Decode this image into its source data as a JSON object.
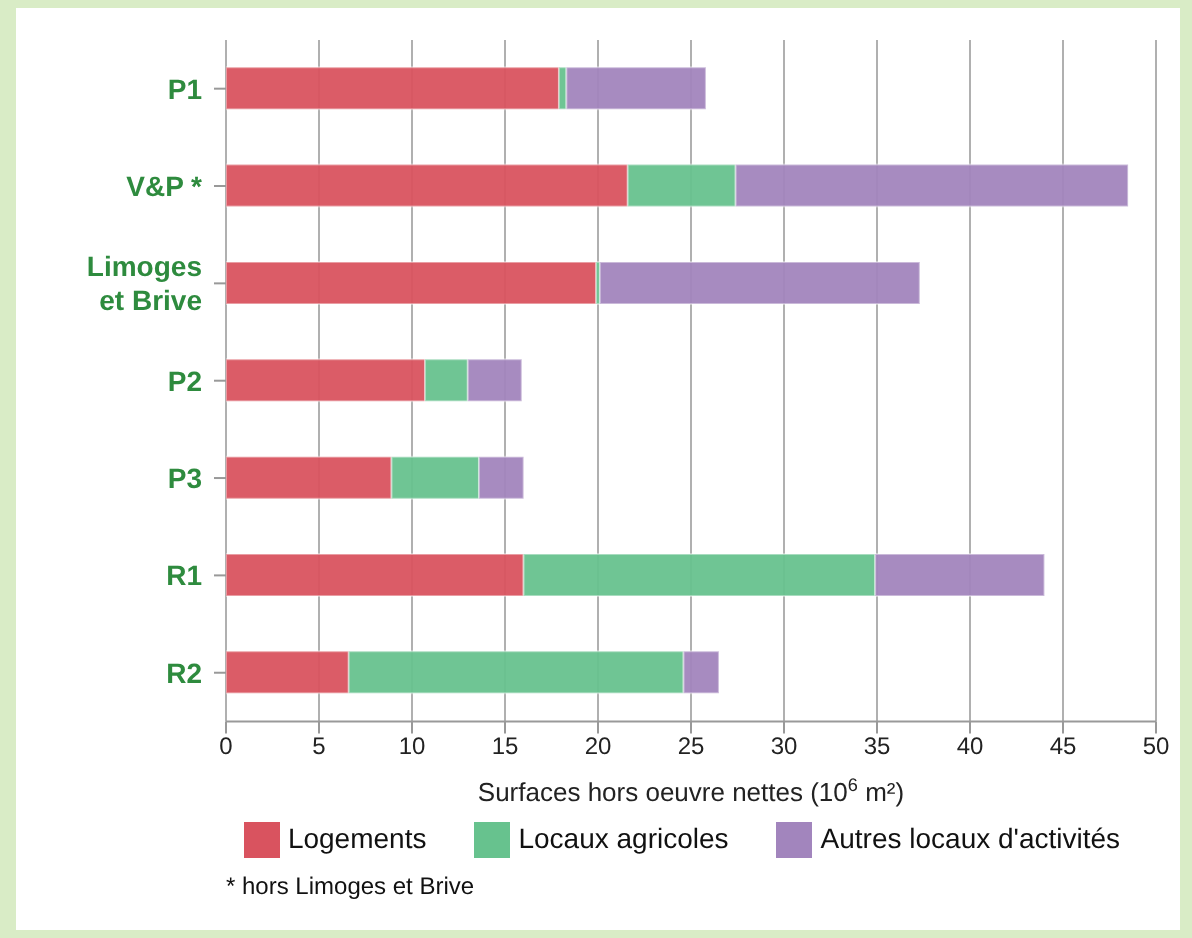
{
  "chart_data": {
    "type": "bar",
    "orientation": "horizontal",
    "stacked": true,
    "categories": [
      "P1",
      "V&P *",
      "Limoges et Brive",
      "P2",
      "P3",
      "R1",
      "R2"
    ],
    "series": [
      {
        "name": "Logements",
        "color": "#d9535f",
        "values": [
          17.9,
          21.6,
          19.9,
          10.7,
          8.9,
          16.0,
          6.6
        ]
      },
      {
        "name": "Locaux agricoles",
        "color": "#67c28e",
        "values": [
          0.4,
          5.8,
          0.2,
          2.3,
          4.7,
          18.9,
          18.0
        ]
      },
      {
        "name": "Autres locaux d'activités",
        "color": "#a285bd",
        "values": [
          7.5,
          21.1,
          17.2,
          2.9,
          2.4,
          9.1,
          1.9
        ]
      }
    ],
    "xlabel": "Surfaces hors oeuvre nettes (10$^{6}$ m²)",
    "xlim": [
      0,
      50
    ],
    "xticks": [
      0,
      5,
      10,
      15,
      20,
      25,
      30,
      35,
      40,
      45,
      50
    ],
    "grid": "x",
    "legend": "bottom",
    "annotations": [
      "* hors Limoges et Brive"
    ]
  }
}
